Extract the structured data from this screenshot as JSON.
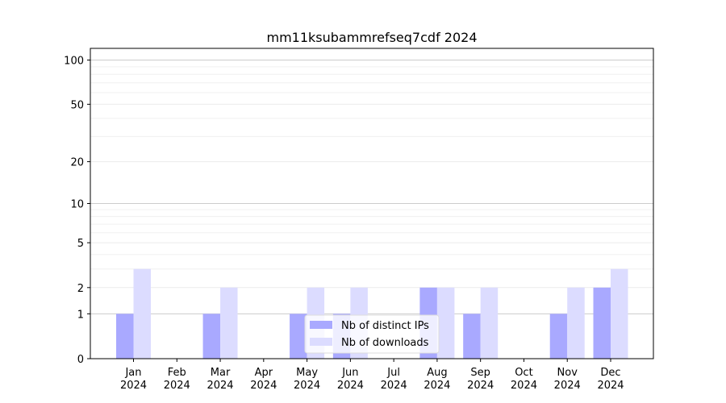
{
  "chart_data": {
    "type": "bar",
    "title": "mm11ksubammrefseq7cdf 2024",
    "categories": [
      [
        "Jan",
        "2024"
      ],
      [
        "Feb",
        "2024"
      ],
      [
        "Mar",
        "2024"
      ],
      [
        "Apr",
        "2024"
      ],
      [
        "May",
        "2024"
      ],
      [
        "Jun",
        "2024"
      ],
      [
        "Jul",
        "2024"
      ],
      [
        "Aug",
        "2024"
      ],
      [
        "Sep",
        "2024"
      ],
      [
        "Oct",
        "2024"
      ],
      [
        "Nov",
        "2024"
      ],
      [
        "Dec",
        "2024"
      ]
    ],
    "series": [
      {
        "name": "Nb of distinct IPs",
        "color": "#a9a9ff",
        "values": [
          1,
          0,
          1,
          0,
          1,
          1,
          0,
          2,
          1,
          0,
          1,
          2
        ]
      },
      {
        "name": "Nb of downloads",
        "color": "#dcdcff",
        "values": [
          3,
          0,
          2,
          0,
          2,
          2,
          0,
          2,
          2,
          0,
          2,
          3
        ]
      }
    ],
    "yscale": "log(1+y)",
    "yticks": [
      "0",
      "1",
      "2",
      "5",
      "10",
      "20",
      "50",
      "100"
    ],
    "ytick_values": [
      0,
      1,
      2,
      5,
      10,
      20,
      50,
      100
    ],
    "ylim": [
      0,
      120
    ],
    "legend": "bottom-center",
    "grid": true
  }
}
